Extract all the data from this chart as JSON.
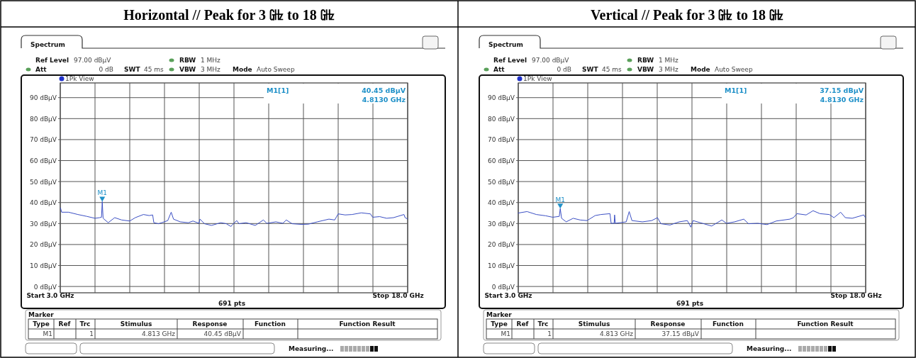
{
  "chart_data": [
    {
      "type": "line",
      "title": "Horizontal // Peak for 3 ㎓ to 18 ㎓",
      "x": [
        3.01,
        3.06,
        3.36,
        3.76,
        4.15,
        4.5,
        4.7,
        4.78,
        4.813,
        4.85,
        5.07,
        5.35,
        5.65,
        6.0,
        6.24,
        6.59,
        6.84,
        6.99,
        7.04,
        7.24,
        7.49,
        7.64,
        7.79,
        7.89,
        8.18,
        8.53,
        8.73,
        8.99,
        9.03,
        9.23,
        9.53,
        9.93,
        10.17,
        10.37,
        10.42,
        10.62,
        10.72,
        11.02,
        11.42,
        11.77,
        11.92,
        12.31,
        12.61,
        12.76,
        13.01,
        13.41,
        13.71,
        14.1,
        14.6,
        14.85,
        15.0,
        15.3,
        15.6,
        16.0,
        16.39,
        16.49,
        16.79,
        17.09,
        17.39,
        17.84,
        17.89,
        17.99
      ],
      "series": [
        {
          "color": "#3b4fc4",
          "values": [
            37.4,
            35.4,
            35.4,
            34.3,
            33.4,
            32.5,
            32.8,
            33.0,
            40.45,
            32.5,
            30.4,
            32.8,
            31.7,
            31.2,
            32.8,
            34.3,
            33.8,
            34.1,
            30.4,
            29.9,
            30.8,
            31.4,
            35.4,
            32.1,
            30.8,
            30.4,
            31.2,
            30.1,
            32.1,
            29.9,
            29.1,
            30.4,
            29.9,
            28.6,
            29.3,
            31.4,
            29.9,
            30.4,
            29.1,
            31.7,
            30.1,
            30.8,
            30.1,
            31.7,
            29.9,
            29.6,
            29.7,
            30.8,
            32.1,
            31.7,
            34.6,
            34.1,
            34.3,
            35.1,
            34.6,
            33.0,
            33.3,
            32.5,
            32.8,
            34.3,
            32.8,
            32.2
          ]
        }
      ],
      "xlim": [
        3,
        18
      ],
      "ylim": [
        -3,
        97
      ],
      "xticks": [
        {
          "value": 3,
          "label": "3.0 GHz"
        },
        {
          "value": 4.5,
          "label": null
        },
        {
          "value": 6,
          "label": null
        },
        {
          "value": 7.5,
          "label": null
        },
        {
          "value": 9,
          "label": null
        },
        {
          "value": 10.5,
          "label": null
        },
        {
          "value": 12,
          "label": null
        },
        {
          "value": 13.5,
          "label": null
        },
        {
          "value": 15,
          "label": null
        },
        {
          "value": 16.5,
          "label": null
        },
        {
          "value": 18,
          "label": "18.0 GHz"
        }
      ],
      "yticks": [
        {
          "value": 90,
          "label": "90 dBµV"
        },
        {
          "value": 80,
          "label": "80 dBµV"
        },
        {
          "value": 70,
          "label": "70 dBµV"
        },
        {
          "value": 60,
          "label": "60 dBµV"
        },
        {
          "value": 50,
          "label": "50 dBµV"
        },
        {
          "value": 40,
          "label": "40 dBµV"
        },
        {
          "value": 30,
          "label": "30 dBµV"
        },
        {
          "value": 20,
          "label": "20 dBµV"
        },
        {
          "value": 10,
          "label": "10 dBµV"
        },
        {
          "value": 0,
          "label": "0 dBµV"
        }
      ],
      "grid": true,
      "annotations": [
        "Spectrum",
        "Ref Level",
        "97.00 dBµV",
        "RBW",
        "1 MHz",
        "Att",
        "0 dB",
        "SWT",
        "45 ms",
        "VBW",
        "3 MHz",
        "Mode",
        "Auto Sweep",
        "1Pk View",
        "M1[1]",
        "40.45 dBµV",
        "4.8130 GHz",
        "691 pts",
        "Marker",
        "Type",
        "Ref",
        "Trc",
        "Stimulus",
        "Response",
        "Function",
        "Function Result",
        "M1",
        "1",
        "4.813 GHz",
        "40.45 dBµV",
        "Measuring...",
        "Start",
        "Stop",
        {
          "text": "M1",
          "x": 4.813,
          "y": 40.45
        }
      ]
    },
    {
      "type": "line",
      "title": "Vertical // Peak for 3 ㎓ to 18 ㎓",
      "x": [
        3.0,
        3.38,
        3.78,
        4.18,
        4.49,
        4.77,
        4.813,
        4.87,
        5.07,
        5.37,
        5.67,
        5.97,
        6.32,
        6.57,
        6.96,
        7.01,
        7.14,
        7.16,
        7.19,
        7.66,
        7.79,
        7.91,
        8.36,
        8.76,
        9.01,
        9.16,
        9.55,
        9.95,
        10.3,
        10.45,
        10.55,
        10.95,
        11.35,
        11.79,
        11.99,
        12.34,
        12.74,
        12.94,
        13.34,
        13.74,
        14.14,
        14.73,
        14.88,
        15.03,
        15.43,
        15.73,
        16.03,
        16.43,
        16.63,
        16.92,
        17.12,
        17.42,
        17.92,
        17.99
      ],
      "series": [
        {
          "color": "#3b4fc4",
          "values": [
            35.0,
            35.7,
            34.3,
            33.7,
            33.0,
            33.4,
            37.15,
            32.5,
            30.8,
            32.5,
            31.7,
            31.4,
            33.8,
            34.3,
            34.7,
            30.1,
            30.1,
            34.1,
            30.1,
            30.8,
            35.7,
            31.4,
            30.8,
            31.4,
            32.8,
            29.9,
            29.3,
            30.8,
            31.4,
            28.3,
            31.4,
            30.1,
            28.8,
            31.7,
            30.1,
            30.8,
            32.1,
            29.9,
            30.1,
            29.5,
            31.2,
            32.1,
            32.8,
            34.7,
            34.1,
            36.1,
            34.7,
            34.3,
            32.8,
            35.4,
            32.8,
            32.5,
            34.1,
            32.8
          ]
        }
      ],
      "xlim": [
        3,
        18
      ],
      "ylim": [
        -3,
        97
      ],
      "xticks": [
        {
          "value": 3,
          "label": "3.0 GHz"
        },
        {
          "value": 4.5,
          "label": null
        },
        {
          "value": 6,
          "label": null
        },
        {
          "value": 7.5,
          "label": null
        },
        {
          "value": 9,
          "label": null
        },
        {
          "value": 10.5,
          "label": null
        },
        {
          "value": 12,
          "label": null
        },
        {
          "value": 13.5,
          "label": null
        },
        {
          "value": 15,
          "label": null
        },
        {
          "value": 16.5,
          "label": null
        },
        {
          "value": 18,
          "label": "18.0 GHz"
        }
      ],
      "yticks": [
        {
          "value": 90,
          "label": "90 dBµV"
        },
        {
          "value": 80,
          "label": "80 dBµV"
        },
        {
          "value": 70,
          "label": "70 dBµV"
        },
        {
          "value": 60,
          "label": "60 dBµV"
        },
        {
          "value": 50,
          "label": "50 dBµV"
        },
        {
          "value": 40,
          "label": "40 dBµV"
        },
        {
          "value": 30,
          "label": "30 dBµV"
        },
        {
          "value": 20,
          "label": "20 dBµV"
        },
        {
          "value": 10,
          "label": "10 dBµV"
        },
        {
          "value": 0,
          "label": "0 dBµV"
        }
      ],
      "grid": true,
      "annotations": [
        "Spectrum",
        "Ref Level",
        "97.00 dBµV",
        "RBW",
        "1 MHz",
        "Att",
        "0 dB",
        "SWT",
        "45 ms",
        "VBW",
        "3 MHz",
        "Mode",
        "Auto Sweep",
        "1Pk View",
        "M1[1]",
        "37.15 dBµV",
        "4.8130 GHz",
        "691 pts",
        "Marker",
        "Type",
        "Ref",
        "Trc",
        "Stimulus",
        "Response",
        "Function",
        "Function Result",
        "M1",
        "1",
        "4.813 GHz",
        "37.15 dBµV",
        "Measuring...",
        "Start",
        "Stop",
        {
          "text": "M1",
          "x": 4.813,
          "y": 37.15
        }
      ]
    }
  ]
}
